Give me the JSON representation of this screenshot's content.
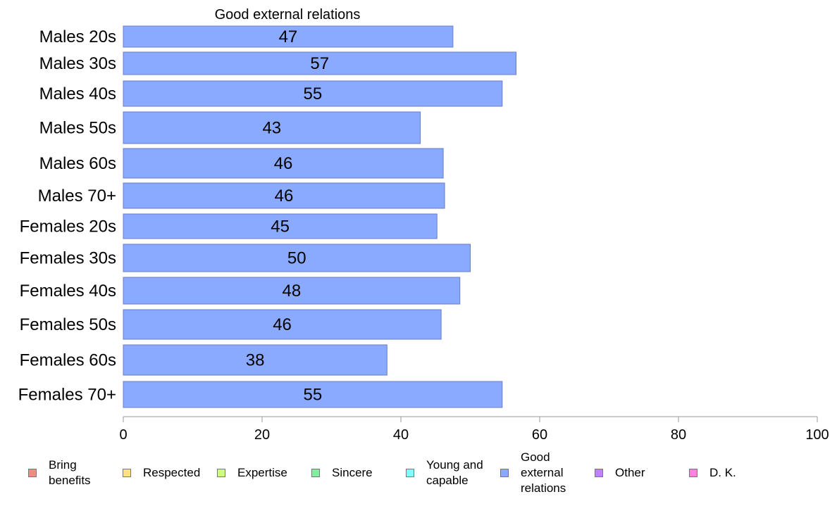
{
  "chart_data": {
    "type": "bar",
    "orientation": "horizontal",
    "title": "Good external relations",
    "categories": [
      "Males 20s",
      "Males 30s",
      "Males 40s",
      "Males 50s",
      "Males 60s",
      "Males 70+",
      "Females 20s",
      "Females 30s",
      "Females 40s",
      "Females 50s",
      "Females 60s",
      "Females 70+"
    ],
    "series": [
      {
        "name": "Good external relations",
        "color": "#8aaaff",
        "values": [
          47.5,
          56.6,
          54.6,
          42.8,
          46.1,
          46.3,
          45.2,
          50.0,
          48.5,
          45.8,
          38.0,
          54.6
        ],
        "labels": [
          "47",
          "57",
          "55",
          "43",
          "46",
          "46",
          "45",
          "50",
          "48",
          "46",
          "38",
          "55"
        ]
      }
    ],
    "xlim": [
      0,
      100
    ],
    "xticks": [
      "0",
      "20",
      "40",
      "60",
      "80",
      "100"
    ],
    "grid": false,
    "legend_position": "bottom"
  },
  "legend": {
    "items": [
      {
        "lines": [
          "Bring",
          "benefits"
        ],
        "color": "#f28b82"
      },
      {
        "lines": [
          "Respected"
        ],
        "color": "#ffe082"
      },
      {
        "lines": [
          "Expertise"
        ],
        "color": "#ccff80"
      },
      {
        "lines": [
          "Sincere"
        ],
        "color": "#80f0a0"
      },
      {
        "lines": [
          "Young and",
          "capable"
        ],
        "color": "#80ffff"
      },
      {
        "lines": [
          "Good",
          "external",
          "relations"
        ],
        "color": "#8aaaff"
      },
      {
        "lines": [
          "Other"
        ],
        "color": "#c080ff"
      },
      {
        "lines": [
          "D. K."
        ],
        "color": "#ff80e0"
      }
    ]
  }
}
